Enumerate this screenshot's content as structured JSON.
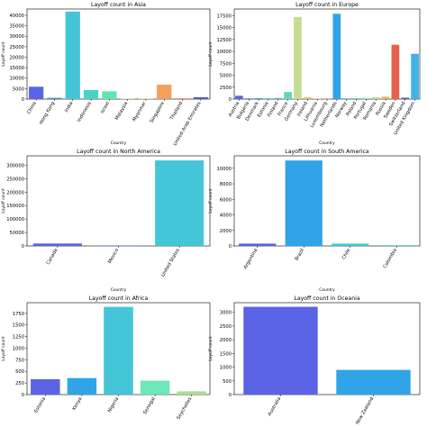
{
  "chart_data": [
    {
      "type": "bar",
      "title": "Layoff count in Asia",
      "xlabel": "Country",
      "ylabel": "Layoff count",
      "ylim": [
        0,
        43000
      ],
      "yticks": [
        0,
        5000,
        10000,
        15000,
        20000,
        25000,
        30000,
        35000,
        40000
      ],
      "categories": [
        "China",
        "Hong Kong",
        "India",
        "Indonesia",
        "Israel",
        "Malaysia",
        "Myanmar",
        "Singapore",
        "Thailand",
        "United Arab Emirates"
      ],
      "values": [
        5900,
        600,
        41800,
        4300,
        3700,
        200,
        200,
        6900,
        300,
        900
      ],
      "colors": [
        "#5a63e6",
        "#3b8ee0",
        "#44c6d8",
        "#49d2c4",
        "#5ce6b0",
        "#aede8c",
        "#dccc74",
        "#f6a05c",
        "#e8604a",
        "#4a5bdf"
      ]
    },
    {
      "type": "bar",
      "title": "Layoff count in Europe",
      "xlabel": "Country",
      "ylabel": "Layoff count",
      "ylim": [
        0,
        18900
      ],
      "yticks": [
        0,
        2500,
        5000,
        7500,
        10000,
        12500,
        15000,
        17500
      ],
      "categories": [
        "Austria",
        "Bulgaria",
        "Denmark",
        "Estonia",
        "Finland",
        "France",
        "Germany",
        "Ireland",
        "Lithuania",
        "Luxembourg",
        "Netherlands",
        "Norway",
        "Poland",
        "Portugal",
        "Romania",
        "Russia",
        "Sweden",
        "Switzerland",
        "United Kingdom"
      ],
      "values": [
        700,
        150,
        200,
        150,
        250,
        1500,
        17200,
        400,
        100,
        50,
        17900,
        150,
        200,
        250,
        400,
        500,
        11400,
        300,
        9500
      ],
      "colors": [
        "#5a63e6",
        "#4f7ee2",
        "#4599de",
        "#3fb2d9",
        "#44c6d3",
        "#5fd9b7",
        "#c6dc8f",
        "#dcc178",
        "#e2a265",
        "#e58457",
        "#2fa4e6",
        "#44c6d8",
        "#5fd8c6",
        "#8ce0a8",
        "#b8dc8c",
        "#e6b05c",
        "#e8604a",
        "#4a5bdf",
        "#3fb2e6"
      ]
    },
    {
      "type": "bar",
      "title": "Layoff count in North America",
      "xlabel": "Country",
      "ylabel": "Layoff count",
      "ylim": [
        0,
        335000
      ],
      "yticks": [
        0,
        50000,
        100000,
        150000,
        200000,
        250000,
        300000
      ],
      "categories": [
        "Canada",
        "Mexico",
        "United States"
      ],
      "values": [
        9000,
        500,
        318000
      ],
      "colors": [
        "#5a63e6",
        "#3b8ee0",
        "#44c6d8"
      ]
    },
    {
      "type": "bar",
      "title": "Layoff count in South America",
      "xlabel": "Country",
      "ylabel": "Layoff count",
      "ylim": [
        0,
        11600
      ],
      "yticks": [
        0,
        2000,
        4000,
        6000,
        8000,
        10000
      ],
      "categories": [
        "Argentina",
        "Brazil",
        "Chile",
        "Colombia"
      ],
      "values": [
        300,
        11000,
        300,
        100
      ],
      "colors": [
        "#5a63e6",
        "#2fa4e6",
        "#44c6d8",
        "#5ccfd0"
      ]
    },
    {
      "type": "bar",
      "title": "Layoff count in Africa",
      "xlabel": "Country",
      "ylabel": "Layoff count",
      "ylim": [
        0,
        1980
      ],
      "yticks": [
        0,
        250,
        500,
        750,
        1000,
        1250,
        1500,
        1750
      ],
      "categories": [
        "Estonia",
        "Kenya",
        "Nigeria",
        "Senegal",
        "Seychelles"
      ],
      "values": [
        330,
        355,
        1890,
        300,
        70
      ],
      "colors": [
        "#5a63e6",
        "#2fa4e6",
        "#44c6d8",
        "#6ee6b8",
        "#a8e090"
      ]
    },
    {
      "type": "bar",
      "title": "Layoff count in Oceania",
      "xlabel": "Country",
      "ylabel": "Layoff count",
      "ylim": [
        0,
        3350
      ],
      "yticks": [
        0,
        500,
        1000,
        1500,
        2000,
        2500,
        3000
      ],
      "categories": [
        "Australia",
        "New Zealand"
      ],
      "values": [
        3200,
        900
      ],
      "colors": [
        "#5a63e6",
        "#2fa4e6"
      ]
    }
  ]
}
